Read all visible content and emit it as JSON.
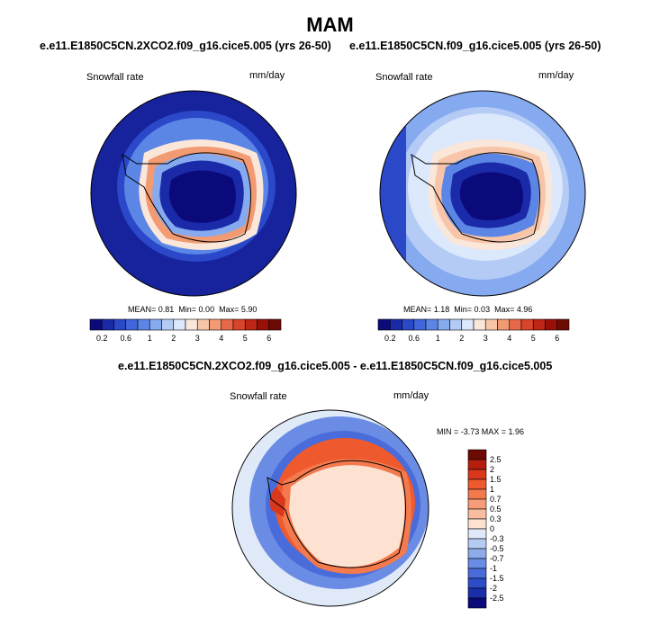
{
  "figure": {
    "season": "MAM",
    "panel_left_title": "e.e11.E1850C5CN.2XCO2.f09_g16.cice5.005 (yrs 26-50)",
    "panel_right_title": "e.e11.E1850C5CN.f09_g16.cice5.005 (yrs 26-50)",
    "panel_diff_title": "e.e11.E1850C5CN.2XCO2.f09_g16.cice5.005 - e.e11.E1850C5CN.f09_g16.cice5.005",
    "variable": "Snowfall rate",
    "units": "mm/day"
  },
  "chart_data": [
    {
      "type": "heatmap",
      "projection": "south polar stereographic",
      "title": "e.e11.E1850C5CN.2XCO2.f09_g16.cice5.005 (yrs 26-50)",
      "variable": "Snowfall rate",
      "units": "mm/day",
      "stats": {
        "mean": 0.81,
        "min": 0.0,
        "max": 5.9
      },
      "stats_text": {
        "mean": "MEAN=  0.81",
        "min": "Min=  0.00",
        "max": "Max=  5.90"
      },
      "colorbar_levels": [
        0.2,
        0.4,
        0.6,
        0.8,
        1,
        1.5,
        2,
        2.5,
        3,
        3.5,
        4,
        4.5,
        5,
        5.5,
        6
      ],
      "colorbar_tick_labels": [
        "0.2",
        "0.6",
        "1",
        "2",
        "3",
        "4",
        "5",
        "6"
      ],
      "colors": [
        "#0a0a7a",
        "#1a2aa8",
        "#2a48c8",
        "#3f66dc",
        "#5b86e6",
        "#86aaf0",
        "#b4cbf6",
        "#dce8fb",
        "#fbe6da",
        "#f8c5a8",
        "#f29a72",
        "#e8694a",
        "#d9452a",
        "#bf2616",
        "#991008",
        "#6e0a04"
      ]
    },
    {
      "type": "heatmap",
      "projection": "south polar stereographic",
      "title": "e.e11.E1850C5CN.f09_g16.cice5.005 (yrs 26-50)",
      "variable": "Snowfall rate",
      "units": "mm/day",
      "stats": {
        "mean": 1.18,
        "min": 0.03,
        "max": 4.96
      },
      "stats_text": {
        "mean": "MEAN=  1.18",
        "min": "Min=  0.03",
        "max": "Max=  4.96"
      },
      "colorbar_levels": [
        0.2,
        0.4,
        0.6,
        0.8,
        1,
        1.5,
        2,
        2.5,
        3,
        3.5,
        4,
        4.5,
        5,
        5.5,
        6
      ],
      "colorbar_tick_labels": [
        "0.2",
        "0.6",
        "1",
        "2",
        "3",
        "4",
        "5",
        "6"
      ],
      "colors": [
        "#0a0a7a",
        "#1a2aa8",
        "#2a48c8",
        "#3f66dc",
        "#5b86e6",
        "#86aaf0",
        "#b4cbf6",
        "#dce8fb",
        "#fbe6da",
        "#f8c5a8",
        "#f29a72",
        "#e8694a",
        "#d9452a",
        "#bf2616",
        "#991008",
        "#6e0a04"
      ]
    },
    {
      "type": "heatmap",
      "projection": "south polar stereographic",
      "title": "e.e11.E1850C5CN.2XCO2.f09_g16.cice5.005 - e.e11.E1850C5CN.f09_g16.cice5.005",
      "variable": "Snowfall rate",
      "units": "mm/day",
      "stats": {
        "min": -3.73,
        "max": 1.96
      },
      "stats_text": "MIN =  -3.73 MAX =   1.96",
      "colorbar_tick_labels": [
        "2.5",
        "2",
        "1.5",
        "1",
        "0.7",
        "0.5",
        "0.3",
        "0",
        "-0.3",
        "-0.5",
        "-0.7",
        "-1",
        "-1.5",
        "-2",
        "-2.5"
      ],
      "colors": [
        "#6e0a04",
        "#b51e0e",
        "#d9381c",
        "#ee5a2e",
        "#f47a4e",
        "#f69c78",
        "#f9bea2",
        "#fde2d2",
        "#dfe9f8",
        "#b6cbf2",
        "#8eacec",
        "#6a8ce4",
        "#4a6cda",
        "#2e4cc8",
        "#1a2eaa",
        "#0a0a7a"
      ]
    }
  ]
}
